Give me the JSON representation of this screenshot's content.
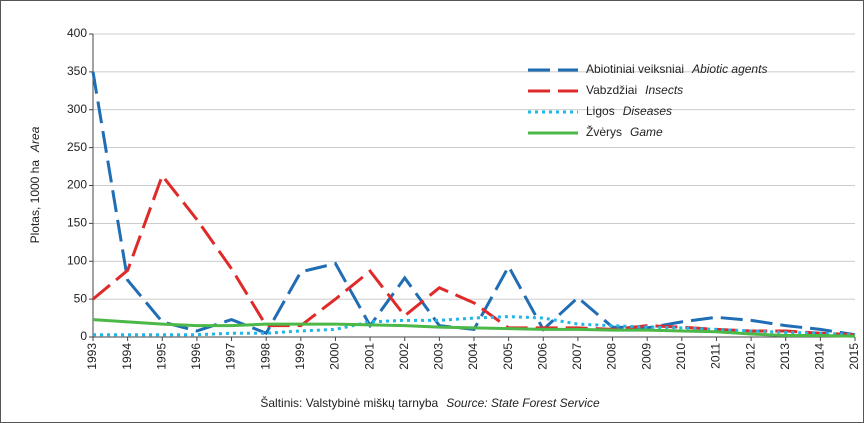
{
  "chart_data": {
    "type": "line",
    "y_label": "Plotas, 1000 ha",
    "y_label_en": "Area",
    "source": "Šaltinis: Valstybinė miškų tarnyba",
    "source_en": "Source: State Forest Service",
    "categories": [
      "1993",
      "1994",
      "1995",
      "1996",
      "1997",
      "1998",
      "1999",
      "2000",
      "2001",
      "2002",
      "2003",
      "2004",
      "2005",
      "2006",
      "2007",
      "2008",
      "2009",
      "2010",
      "2011",
      "2012",
      "2013",
      "2014",
      "2015"
    ],
    "series": [
      {
        "name": "Abiotiniai veiksniai",
        "name_en": "Abiotic agents",
        "color": "#1f6db4",
        "style": "dashed",
        "values": [
          350,
          75,
          20,
          8,
          23,
          5,
          86,
          97,
          15,
          78,
          15,
          10,
          93,
          10,
          52,
          13,
          12,
          20,
          26,
          22,
          15,
          10,
          3
        ]
      },
      {
        "name": "Vabzdžiai",
        "name_en": "Insects",
        "color": "#e02a2a",
        "style": "dashed",
        "values": [
          50,
          88,
          213,
          155,
          90,
          15,
          15,
          50,
          87,
          28,
          65,
          45,
          12,
          12,
          12,
          10,
          15,
          13,
          10,
          8,
          8,
          5,
          3
        ]
      },
      {
        "name": "Ligos",
        "name_en": "Diseases",
        "color": "#1fb6e8",
        "style": "dotted",
        "values": [
          3,
          3,
          3,
          3,
          5,
          5,
          8,
          10,
          20,
          22,
          22,
          25,
          27,
          25,
          17,
          15,
          13,
          12,
          10,
          8,
          6,
          5,
          3
        ]
      },
      {
        "name": "Žvėrys",
        "name_en": "Game",
        "color": "#4cb848",
        "style": "solid",
        "values": [
          23,
          20,
          17,
          15,
          15,
          17,
          17,
          17,
          16,
          15,
          13,
          12,
          11,
          10,
          10,
          9,
          9,
          8,
          7,
          4,
          2,
          2,
          1
        ]
      }
    ],
    "ylim": [
      0,
      400
    ],
    "yticks": [
      0,
      50,
      100,
      150,
      200,
      250,
      300,
      350,
      400
    ],
    "grid": true,
    "legend": "upper right"
  }
}
